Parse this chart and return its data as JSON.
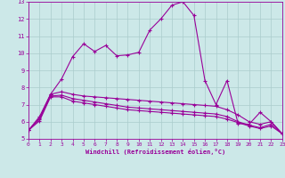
{
  "xlabel": "Windchill (Refroidissement éolien,°C)",
  "xlim": [
    0,
    23
  ],
  "ylim": [
    5,
    13
  ],
  "xticks": [
    0,
    1,
    2,
    3,
    4,
    5,
    6,
    7,
    8,
    9,
    10,
    11,
    12,
    13,
    14,
    15,
    16,
    17,
    18,
    19,
    20,
    21,
    22,
    23
  ],
  "yticks": [
    5,
    6,
    7,
    8,
    9,
    10,
    11,
    12,
    13
  ],
  "bg_color": "#cce8e8",
  "grid_color": "#aacccc",
  "line_color": "#990099",
  "line1_x": [
    0,
    1,
    2,
    3,
    4,
    5,
    6,
    7,
    8,
    9,
    10,
    11,
    12,
    13,
    14,
    15,
    16,
    17,
    18,
    19,
    20,
    21,
    22,
    23
  ],
  "line1_y": [
    5.5,
    6.3,
    7.6,
    8.5,
    9.8,
    10.55,
    10.1,
    10.45,
    9.85,
    9.9,
    10.05,
    11.35,
    12.0,
    12.8,
    13.0,
    12.2,
    8.4,
    7.0,
    8.4,
    5.9,
    5.85,
    6.55,
    6.0,
    5.3
  ],
  "line2_x": [
    0,
    1,
    2,
    3,
    4,
    5,
    6,
    7,
    8,
    9,
    10,
    11,
    12,
    13,
    14,
    15,
    16,
    17,
    18,
    19,
    20,
    21,
    22,
    23
  ],
  "line2_y": [
    5.5,
    6.2,
    7.6,
    7.75,
    7.6,
    7.5,
    7.45,
    7.4,
    7.35,
    7.3,
    7.25,
    7.2,
    7.15,
    7.1,
    7.05,
    7.0,
    6.95,
    6.9,
    6.7,
    6.4,
    6.0,
    5.85,
    6.0,
    5.3
  ],
  "line3_x": [
    0,
    1,
    2,
    3,
    4,
    5,
    6,
    7,
    8,
    9,
    10,
    11,
    12,
    13,
    14,
    15,
    16,
    17,
    18,
    19,
    20,
    21,
    22,
    23
  ],
  "line3_y": [
    5.5,
    6.15,
    7.5,
    7.55,
    7.35,
    7.25,
    7.15,
    7.05,
    6.95,
    6.85,
    6.8,
    6.75,
    6.7,
    6.65,
    6.6,
    6.55,
    6.5,
    6.45,
    6.3,
    6.0,
    5.8,
    5.65,
    5.85,
    5.3
  ],
  "line4_x": [
    0,
    1,
    2,
    3,
    4,
    5,
    6,
    7,
    8,
    9,
    10,
    11,
    12,
    13,
    14,
    15,
    16,
    17,
    18,
    19,
    20,
    21,
    22,
    23
  ],
  "line4_y": [
    5.5,
    6.05,
    7.45,
    7.45,
    7.2,
    7.1,
    7.0,
    6.9,
    6.8,
    6.7,
    6.65,
    6.6,
    6.55,
    6.5,
    6.45,
    6.4,
    6.35,
    6.3,
    6.15,
    5.95,
    5.75,
    5.6,
    5.75,
    5.3
  ]
}
